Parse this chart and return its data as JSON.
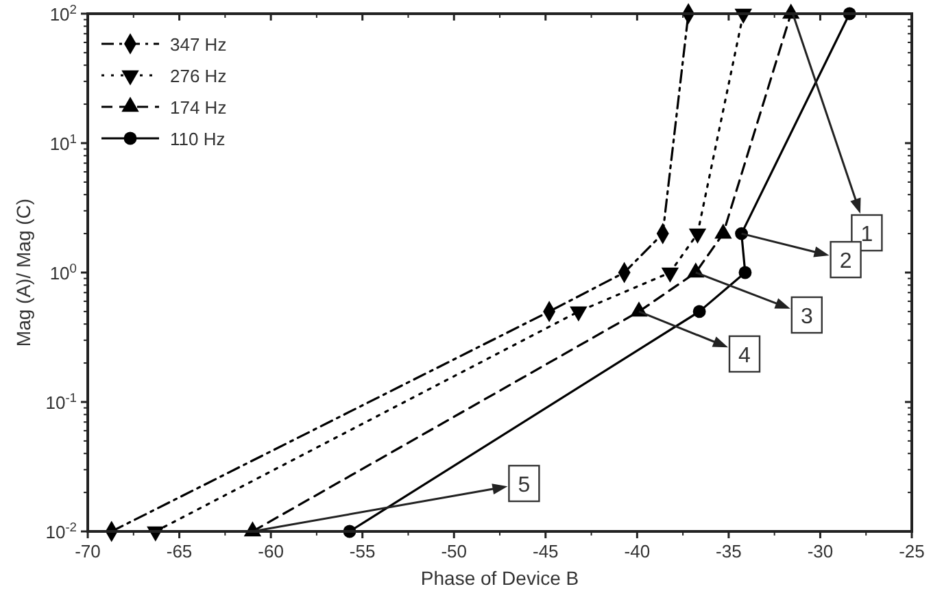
{
  "chart_data": {
    "type": "line",
    "xlabel": "Phase of Device B",
    "ylabel": "Mag (A)/ Mag (C)",
    "log": "y",
    "xlim": [
      -70,
      -25
    ],
    "xticks": [
      -70,
      -65,
      -60,
      -55,
      -50,
      -45,
      -40,
      -35,
      -30,
      -25
    ],
    "ylim": [
      0.01,
      100
    ],
    "yticks": [
      {
        "value": 0.01,
        "label": "10$^{-2}$"
      },
      {
        "value": 0.1,
        "label": "10$^{-1}$"
      },
      {
        "value": 1,
        "label": "10$^{0}$"
      },
      {
        "value": 10,
        "label": "10$^{1}$"
      },
      {
        "value": 100,
        "label": "10$^{2}$"
      }
    ],
    "grid": false,
    "legend": "top left",
    "series": [
      {
        "name": "347 Hz",
        "color": "#000000",
        "marker": "diamond",
        "line_style": "dashdot",
        "x": [
          -68.7,
          -44.8,
          -40.7,
          -38.6,
          -37.2
        ],
        "values": [
          0.01,
          0.5,
          1,
          2,
          100
        ]
      },
      {
        "name": "276 Hz",
        "color": "#000000",
        "marker": "triangle-down",
        "line_style": "dotted",
        "x": [
          -66.3,
          -43.2,
          -38.2,
          -36.7,
          -34.2
        ],
        "values": [
          0.01,
          0.5,
          1,
          2,
          100
        ]
      },
      {
        "name": "174 Hz",
        "color": "#000000",
        "marker": "triangle",
        "line_style": "dashed",
        "x": [
          -61,
          -39.9,
          -36.8,
          -35.3,
          -31.6
        ],
        "values": [
          0.01,
          0.5,
          1,
          2,
          100
        ]
      },
      {
        "name": "110 Hz",
        "color": "#000000",
        "marker": "circle",
        "line_style": "solid",
        "x": [
          -55.7,
          -36.6,
          -34.1,
          -34.3,
          -28.4
        ],
        "values": [
          0.01,
          0.5,
          1,
          2,
          100
        ]
      }
    ],
    "annotations": [
      {
        "text": "1",
        "x": -31.5,
        "y": 100
      },
      {
        "text": "2",
        "x": -34.3,
        "y": 2
      },
      {
        "text": "3",
        "x": -36.8,
        "y": 1
      },
      {
        "text": "4",
        "x": -39.9,
        "y": 0.5
      },
      {
        "text": "5",
        "x": -61,
        "y": 0.01
      }
    ]
  }
}
